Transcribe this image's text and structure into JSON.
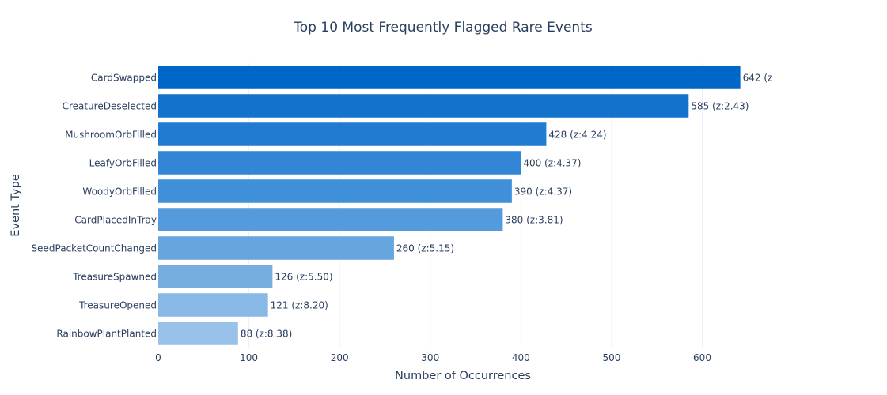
{
  "chart_data": {
    "type": "bar",
    "orientation": "horizontal",
    "title": "Top 10 Most Frequently Flagged Rare Events",
    "xlabel": "Number of Occurrences",
    "ylabel": "Event Type",
    "xlim": [
      0,
      672
    ],
    "xticks": [
      0,
      100,
      200,
      300,
      400,
      500,
      600
    ],
    "grid": true,
    "categories": [
      "CardSwapped",
      "CreatureDeselected",
      "MushroomOrbFilled",
      "LeafyOrbFilled",
      "WoodyOrbFilled",
      "CardPlacedInTray",
      "SeedPacketCountChanged",
      "TreasureSpawned",
      "TreasureOpened",
      "RainbowPlantPlanted"
    ],
    "values": [
      642,
      585,
      428,
      400,
      390,
      380,
      260,
      126,
      121,
      88
    ],
    "data_labels": [
      "642 (z",
      "585 (z:2.43)",
      "428 (z:4.24)",
      "400 (z:4.37)",
      "390 (z:4.37)",
      "380 (z:3.81)",
      "260 (z:5.15)",
      "126 (z:5.50)",
      "121 (z:8.20)",
      "88 (z:8.38)"
    ],
    "colors": [
      "#0066c8",
      "#1272cc",
      "#217bd1",
      "#3385d6",
      "#4090d9",
      "#549adc",
      "#67a5de",
      "#76aee2",
      "#87b8e6",
      "#99c2ea"
    ]
  }
}
